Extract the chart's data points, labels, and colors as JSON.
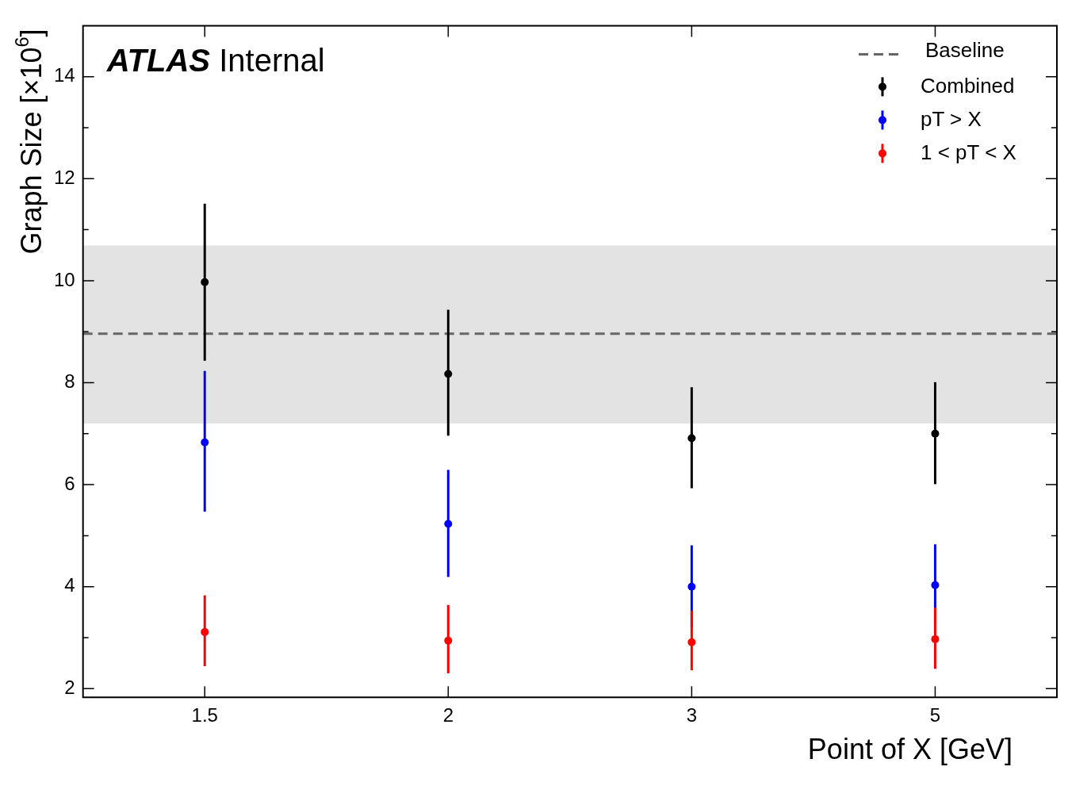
{
  "chart_data": {
    "type": "scatter",
    "xlabel": "Point of X [GeV]",
    "ylabel": "Graph Size [×10$^{6}$]",
    "categories": [
      "1.5",
      "2",
      "3",
      "5"
    ],
    "ylim": [
      1.83,
      15
    ],
    "yticks": [
      2,
      4,
      6,
      8,
      10,
      12,
      14
    ],
    "grid": false,
    "legend": "top right",
    "marker": "circle",
    "annotations": [
      "ATLAS Internal"
    ],
    "ref_lines": [
      {
        "axis": "y",
        "value": 8.96,
        "label": "Baseline",
        "color": "#666666",
        "line_style": "dashed"
      }
    ],
    "bands": [
      {
        "axis": "y",
        "from": 7.2,
        "to": 10.69,
        "color": "#e3e3e3"
      }
    ],
    "series": [
      {
        "name": "Combined",
        "color": "#000000",
        "values": [
          9.97,
          8.17,
          6.91,
          7.0
        ],
        "errors": [
          [
            8.43,
            11.51
          ],
          [
            6.96,
            9.43
          ],
          [
            5.93,
            7.91
          ],
          [
            6.01,
            8.01
          ]
        ]
      },
      {
        "name": "pT > X",
        "color": "#0000ff",
        "values": [
          6.83,
          5.23,
          4.0,
          4.03
        ],
        "errors": [
          [
            5.47,
            8.23
          ],
          [
            4.19,
            6.29
          ],
          [
            3.2,
            4.81
          ],
          [
            3.2,
            4.83
          ]
        ]
      },
      {
        "name": "1 < pT < X",
        "color": "#ff0000",
        "values": [
          3.11,
          2.94,
          2.91,
          2.97
        ],
        "errors": [
          [
            2.44,
            3.83
          ],
          [
            2.3,
            3.64
          ],
          [
            2.36,
            3.53
          ],
          [
            2.39,
            3.59
          ]
        ]
      }
    ]
  }
}
